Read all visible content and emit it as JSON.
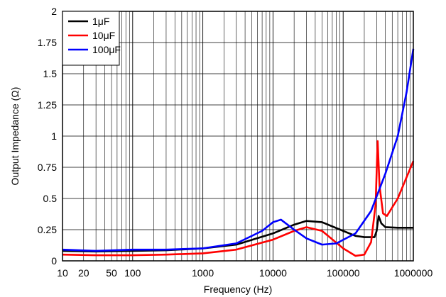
{
  "chart_data": {
    "type": "line",
    "title": "",
    "xlabel": "Frequency (Hz)",
    "ylabel": "Output Impedance (Ω)",
    "xscale": "log",
    "xlim": [
      10,
      1000000
    ],
    "ylim": [
      0,
      2
    ],
    "grid": true,
    "legend_position": "top-left",
    "x_tick_labels": [
      {
        "value": 10,
        "label": "10"
      },
      {
        "value": 20,
        "label": "20"
      },
      {
        "value": 50,
        "label": "50"
      },
      {
        "value": 100,
        "label": "100"
      },
      {
        "value": 1000,
        "label": "1000"
      },
      {
        "value": 10000,
        "label": "10000"
      },
      {
        "value": 100000,
        "label": "100000"
      },
      {
        "value": 1000000,
        "label": "1000000"
      }
    ],
    "y_tick_labels": [
      {
        "value": 0,
        "label": "0"
      },
      {
        "value": 0.25,
        "label": "0.25"
      },
      {
        "value": 0.5,
        "label": "0.5"
      },
      {
        "value": 0.75,
        "label": "0.75"
      },
      {
        "value": 1,
        "label": "1"
      },
      {
        "value": 1.25,
        "label": "1.25"
      },
      {
        "value": 1.5,
        "label": "1.5"
      },
      {
        "value": 1.75,
        "label": "1.75"
      },
      {
        "value": 2,
        "label": "2"
      }
    ],
    "series": [
      {
        "name": "1μF",
        "color": "#000000",
        "points": [
          [
            10,
            0.08
          ],
          [
            30,
            0.075
          ],
          [
            100,
            0.08
          ],
          [
            300,
            0.085
          ],
          [
            1000,
            0.1
          ],
          [
            3000,
            0.13
          ],
          [
            10000,
            0.22
          ],
          [
            20000,
            0.29
          ],
          [
            30000,
            0.32
          ],
          [
            50000,
            0.31
          ],
          [
            100000,
            0.24
          ],
          [
            150000,
            0.2
          ],
          [
            200000,
            0.19
          ],
          [
            280000,
            0.19
          ],
          [
            300000,
            0.24
          ],
          [
            320000,
            0.36
          ],
          [
            350000,
            0.3
          ],
          [
            400000,
            0.27
          ],
          [
            600000,
            0.265
          ],
          [
            1000000,
            0.265
          ]
        ]
      },
      {
        "name": "10μF",
        "color": "#ff0000",
        "points": [
          [
            10,
            0.05
          ],
          [
            30,
            0.045
          ],
          [
            100,
            0.045
          ],
          [
            300,
            0.05
          ],
          [
            1000,
            0.06
          ],
          [
            3000,
            0.09
          ],
          [
            10000,
            0.17
          ],
          [
            20000,
            0.24
          ],
          [
            30000,
            0.27
          ],
          [
            50000,
            0.24
          ],
          [
            100000,
            0.1
          ],
          [
            150000,
            0.04
          ],
          [
            200000,
            0.05
          ],
          [
            250000,
            0.15
          ],
          [
            290000,
            0.45
          ],
          [
            310000,
            0.96
          ],
          [
            330000,
            0.6
          ],
          [
            370000,
            0.38
          ],
          [
            420000,
            0.36
          ],
          [
            600000,
            0.5
          ],
          [
            1000000,
            0.8
          ]
        ]
      },
      {
        "name": "100μF",
        "color": "#0000ff",
        "points": [
          [
            10,
            0.09
          ],
          [
            30,
            0.08
          ],
          [
            100,
            0.09
          ],
          [
            300,
            0.09
          ],
          [
            1000,
            0.1
          ],
          [
            3000,
            0.14
          ],
          [
            7000,
            0.24
          ],
          [
            10000,
            0.31
          ],
          [
            13000,
            0.33
          ],
          [
            20000,
            0.25
          ],
          [
            30000,
            0.18
          ],
          [
            50000,
            0.13
          ],
          [
            80000,
            0.14
          ],
          [
            150000,
            0.22
          ],
          [
            250000,
            0.4
          ],
          [
            400000,
            0.7
          ],
          [
            600000,
            1.0
          ],
          [
            800000,
            1.35
          ],
          [
            1000000,
            1.7
          ]
        ]
      }
    ]
  }
}
